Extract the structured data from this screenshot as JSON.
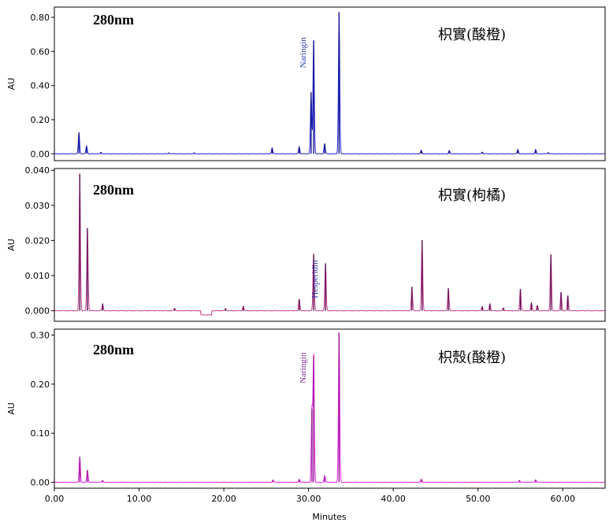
{
  "x_axis": {
    "label": "Minutes",
    "ticks": [
      "0.00",
      "10.00",
      "20.00",
      "30.00",
      "40.00",
      "50.00",
      "60.00"
    ],
    "tick_values": [
      0,
      10,
      20,
      30,
      40,
      50,
      60
    ],
    "range": [
      0,
      65
    ]
  },
  "chart_data": [
    {
      "type": "line",
      "wavelength": "280nm",
      "sample": "枳實(酸橙)",
      "ylabel": "AU",
      "yticks": [
        "0.00",
        "0.20",
        "0.40",
        "0.60",
        "0.80"
      ],
      "ytick_values": [
        0,
        0.2,
        0.4,
        0.6,
        0.8
      ],
      "ylim": [
        -0.04,
        0.86
      ],
      "color": "#1f1fd6",
      "peak_color": "#1a1a8c",
      "peaks": [
        {
          "x": 2.9,
          "y": 0.125
        },
        {
          "x": 3.8,
          "y": 0.045
        },
        {
          "x": 5.5,
          "y": 0.008
        },
        {
          "x": 13.5,
          "y": 0.006
        },
        {
          "x": 16.5,
          "y": 0.005
        },
        {
          "x": 25.7,
          "y": 0.035
        },
        {
          "x": 28.9,
          "y": 0.04
        },
        {
          "x": 30.3,
          "y": 0.36
        },
        {
          "x": 30.6,
          "y": 0.665
        },
        {
          "x": 31.9,
          "y": 0.06
        },
        {
          "x": 33.6,
          "y": 0.83
        },
        {
          "x": 43.3,
          "y": 0.02
        },
        {
          "x": 46.6,
          "y": 0.018
        },
        {
          "x": 50.5,
          "y": 0.01
        },
        {
          "x": 54.7,
          "y": 0.025
        },
        {
          "x": 56.8,
          "y": 0.025
        },
        {
          "x": 58.3,
          "y": 0.008
        }
      ],
      "annotations": [
        {
          "text": "Naringin",
          "x": 30.6,
          "y": 0.665
        }
      ]
    },
    {
      "type": "line",
      "wavelength": "280nm",
      "sample": "枳實(枸橘)",
      "ylabel": "AU",
      "yticks": [
        "0.000",
        "0.010",
        "0.020",
        "0.030",
        "0.040"
      ],
      "ytick_values": [
        0,
        0.01,
        0.02,
        0.03,
        0.04
      ],
      "ylim": [
        -0.003,
        0.0405
      ],
      "color": "#c43c8c",
      "peak_color": "#5a1050",
      "peaks": [
        {
          "x": 3.0,
          "y": 0.039
        },
        {
          "x": 3.9,
          "y": 0.0235
        },
        {
          "x": 5.7,
          "y": 0.002
        },
        {
          "x": 14.2,
          "y": 0.0007
        },
        {
          "x": 20.2,
          "y": 0.0006
        },
        {
          "x": 22.3,
          "y": 0.0013
        },
        {
          "x": 28.9,
          "y": 0.0033
        },
        {
          "x": 30.6,
          "y": 0.0162
        },
        {
          "x": 32.0,
          "y": 0.0135
        },
        {
          "x": 42.2,
          "y": 0.0068
        },
        {
          "x": 43.4,
          "y": 0.0201
        },
        {
          "x": 46.5,
          "y": 0.0064
        },
        {
          "x": 50.5,
          "y": 0.0012
        },
        {
          "x": 51.4,
          "y": 0.002
        },
        {
          "x": 53.0,
          "y": 0.0008
        },
        {
          "x": 55.0,
          "y": 0.0062
        },
        {
          "x": 56.3,
          "y": 0.0022
        },
        {
          "x": 57.0,
          "y": 0.0015
        },
        {
          "x": 58.6,
          "y": 0.016
        },
        {
          "x": 59.8,
          "y": 0.0053
        },
        {
          "x": 60.6,
          "y": 0.0043
        }
      ],
      "dips": [
        {
          "x1": 17.3,
          "x2": 18.6,
          "y": -0.0012
        }
      ],
      "annotations": [
        {
          "text": "Hesperidin",
          "x": 32.0,
          "y": 0.0135
        }
      ]
    },
    {
      "type": "line",
      "wavelength": "280nm",
      "sample": "枳殼(酸橙)",
      "ylabel": "AU",
      "yticks": [
        "0.00",
        "0.10",
        "0.20",
        "0.30"
      ],
      "ytick_values": [
        0,
        0.1,
        0.2,
        0.3
      ],
      "ylim": [
        -0.012,
        0.312
      ],
      "color": "#e020e0",
      "peak_color": "#9a1a9a",
      "peaks": [
        {
          "x": 3.0,
          "y": 0.052
        },
        {
          "x": 3.9,
          "y": 0.025
        },
        {
          "x": 5.7,
          "y": 0.004
        },
        {
          "x": 25.8,
          "y": 0.005
        },
        {
          "x": 28.9,
          "y": 0.006
        },
        {
          "x": 30.4,
          "y": 0.15
        },
        {
          "x": 30.6,
          "y": 0.258
        },
        {
          "x": 31.9,
          "y": 0.013
        },
        {
          "x": 33.6,
          "y": 0.305
        },
        {
          "x": 43.3,
          "y": 0.006
        },
        {
          "x": 54.9,
          "y": 0.004
        },
        {
          "x": 56.8,
          "y": 0.005
        }
      ],
      "annotations": [
        {
          "text": "Naringin",
          "x": 30.6,
          "y": 0.258
        }
      ]
    }
  ]
}
